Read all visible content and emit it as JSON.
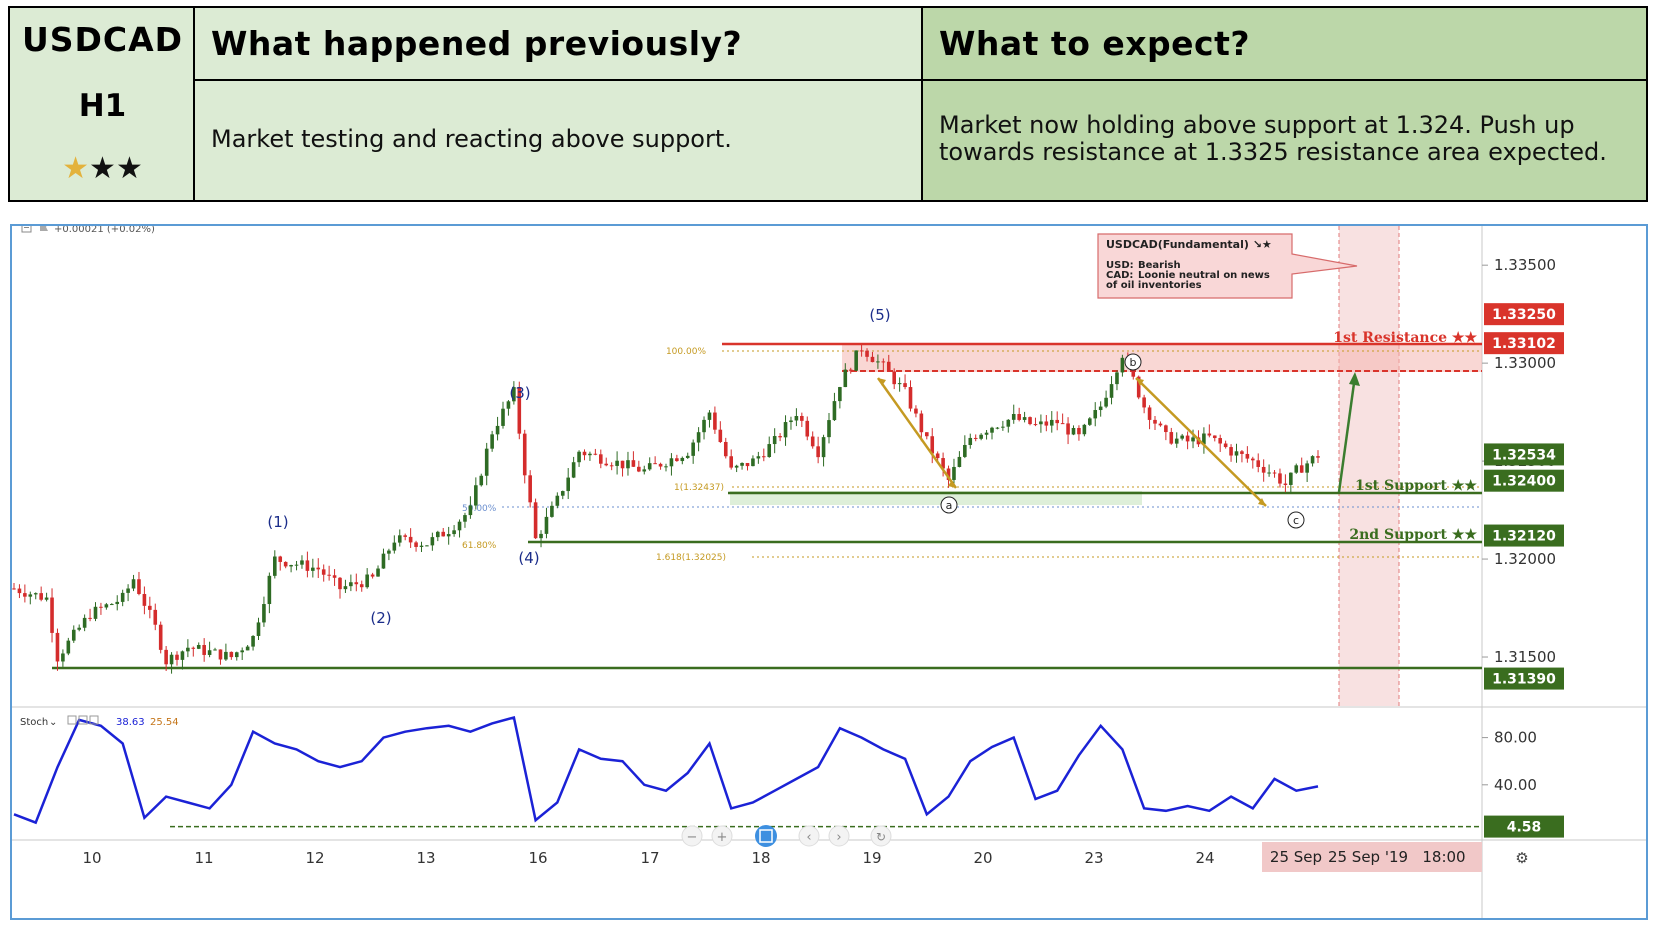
{
  "header": {
    "symbol": "USDCAD",
    "timeframe": "H1",
    "rating_stars": 3,
    "rating_highlighted": 1,
    "col_prev_title": "What happened previously?",
    "col_exp_title": "What to expect?",
    "prev_text": "Market testing and reacting above support.",
    "exp_line1": "Market now holding above support at 1.324. Push up",
    "exp_line2": "towards resistance at 1.3325 resistance area expected."
  },
  "chart": {
    "change_text": "+0.00021 (+0.02%)",
    "fundamental": {
      "title": "USDCAD(Fundamental) ↘★",
      "usd_key": "USD:",
      "usd_val": "Bearish",
      "cad_key": "CAD:",
      "cad_val": "Loonie neutral on news",
      "cad_val2": "of oil inventories"
    },
    "labels": {
      "resistance1": "1st Resistance ★★",
      "support1": "1st Support ★★",
      "support2": "2nd Support ★★",
      "fib100": "100.00%",
      "fib50": "50.00%",
      "fib618": "61.80%",
      "fib1": "1(1.32437)",
      "fib1618": "1.618(1.32025)"
    },
    "stoch_name": "Stoch",
    "stoch_k": "38.63",
    "stoch_d": "25.54",
    "time_label": "25 Sep",
    "time_label_full": "25 Sep '19",
    "time_label_clock": "18:00",
    "colors": {
      "up": "#2e6b24",
      "down": "#d42c2c",
      "support": "#3a6d1f",
      "resistance": "#d9342b",
      "fib": "#c59a22",
      "stoch": "#1b22d6",
      "wave": "#1b2d8a"
    }
  },
  "chart_data": {
    "type": "candlestick",
    "symbol": "USDCAD",
    "timeframe": "H1",
    "x_ticks": [
      "10",
      "11",
      "12",
      "13",
      "16",
      "17",
      "18",
      "19",
      "20",
      "23",
      "24",
      "25 Sep"
    ],
    "y_ticks": [
      "1.31500",
      "1.32000",
      "1.32500",
      "1.33000",
      "1.33500"
    ],
    "ylim": [
      1.3125,
      1.337
    ],
    "price_tags": [
      {
        "value": 1.3325,
        "label": "1.33250",
        "kind": "resistance"
      },
      {
        "value": 1.33102,
        "label": "1.33102",
        "kind": "resistance"
      },
      {
        "value": 1.32534,
        "label": "1.32534",
        "kind": "current"
      },
      {
        "value": 1.324,
        "label": "1.32400",
        "kind": "support"
      },
      {
        "value": 1.3212,
        "label": "1.32120",
        "kind": "support"
      },
      {
        "value": 1.3139,
        "label": "1.31390",
        "kind": "support"
      }
    ],
    "wave_labels": [
      {
        "label": "(1)",
        "x": 21.6,
        "price": 1.3221
      },
      {
        "label": "(2)",
        "x": 32.6,
        "price": 1.3172
      },
      {
        "label": "(3)",
        "x": 44.5,
        "price": 1.3292
      },
      {
        "label": "(4)",
        "x": 47.6,
        "price": 1.321
      },
      {
        "label": "(5)",
        "x": 78.5,
        "price": 1.3331
      },
      {
        "label": "a",
        "x": 85.6,
        "price": 1.3239
      },
      {
        "label": "b",
        "x": 102.0,
        "price": 1.3311
      },
      {
        "label": "c",
        "x": 117.0,
        "price": 1.3236
      }
    ],
    "price_path": [
      [
        0,
        1.3185
      ],
      [
        3,
        1.318
      ],
      [
        4,
        1.315
      ],
      [
        7,
        1.3172
      ],
      [
        10,
        1.318
      ],
      [
        11,
        1.319
      ],
      [
        13,
        1.3165
      ],
      [
        14,
        1.3148
      ],
      [
        16,
        1.3155
      ],
      [
        20,
        1.315
      ],
      [
        22,
        1.316
      ],
      [
        24,
        1.32
      ],
      [
        28,
        1.3195
      ],
      [
        30,
        1.3185
      ],
      [
        33,
        1.319
      ],
      [
        35,
        1.321
      ],
      [
        38,
        1.3208
      ],
      [
        40,
        1.3215
      ],
      [
        42,
        1.3225
      ],
      [
        44,
        1.3265
      ],
      [
        46,
        1.3285
      ],
      [
        47,
        1.3245
      ],
      [
        48,
        1.321
      ],
      [
        50,
        1.323
      ],
      [
        52,
        1.3255
      ],
      [
        55,
        1.325
      ],
      [
        58,
        1.3245
      ],
      [
        60,
        1.325
      ],
      [
        62,
        1.3255
      ],
      [
        64,
        1.3275
      ],
      [
        66,
        1.3245
      ],
      [
        68,
        1.325
      ],
      [
        70,
        1.326
      ],
      [
        72,
        1.3275
      ],
      [
        74,
        1.3255
      ],
      [
        76,
        1.329
      ],
      [
        78,
        1.3308
      ],
      [
        80,
        1.3298
      ],
      [
        82,
        1.3285
      ],
      [
        84,
        1.326
      ],
      [
        86,
        1.324
      ],
      [
        88,
        1.3262
      ],
      [
        90,
        1.3268
      ],
      [
        92,
        1.3272
      ],
      [
        94,
        1.3268
      ],
      [
        96,
        1.327
      ],
      [
        98,
        1.3262
      ],
      [
        100,
        1.3278
      ],
      [
        102,
        1.3305
      ],
      [
        104,
        1.3278
      ],
      [
        106,
        1.3262
      ],
      [
        108,
        1.326
      ],
      [
        110,
        1.3262
      ],
      [
        112,
        1.3255
      ],
      [
        114,
        1.325
      ],
      [
        116,
        1.3243
      ],
      [
        117,
        1.3238
      ],
      [
        118,
        1.3245
      ],
      [
        120,
        1.3253
      ]
    ],
    "stoch_k_path": [
      [
        0,
        15
      ],
      [
        2,
        8
      ],
      [
        4,
        55
      ],
      [
        6,
        95
      ],
      [
        8,
        90
      ],
      [
        10,
        75
      ],
      [
        12,
        12
      ],
      [
        14,
        30
      ],
      [
        16,
        25
      ],
      [
        18,
        20
      ],
      [
        20,
        40
      ],
      [
        22,
        85
      ],
      [
        24,
        75
      ],
      [
        26,
        70
      ],
      [
        28,
        60
      ],
      [
        30,
        55
      ],
      [
        32,
        60
      ],
      [
        34,
        80
      ],
      [
        36,
        85
      ],
      [
        38,
        88
      ],
      [
        40,
        90
      ],
      [
        42,
        85
      ],
      [
        44,
        92
      ],
      [
        46,
        97
      ],
      [
        48,
        10
      ],
      [
        50,
        25
      ],
      [
        52,
        70
      ],
      [
        54,
        62
      ],
      [
        56,
        60
      ],
      [
        58,
        40
      ],
      [
        60,
        35
      ],
      [
        62,
        50
      ],
      [
        64,
        75
      ],
      [
        66,
        20
      ],
      [
        68,
        25
      ],
      [
        70,
        35
      ],
      [
        72,
        45
      ],
      [
        74,
        55
      ],
      [
        76,
        88
      ],
      [
        78,
        80
      ],
      [
        80,
        70
      ],
      [
        82,
        62
      ],
      [
        84,
        15
      ],
      [
        86,
        30
      ],
      [
        88,
        60
      ],
      [
        90,
        72
      ],
      [
        92,
        80
      ],
      [
        94,
        28
      ],
      [
        96,
        35
      ],
      [
        98,
        65
      ],
      [
        100,
        90
      ],
      [
        102,
        70
      ],
      [
        104,
        20
      ],
      [
        106,
        18
      ],
      [
        108,
        22
      ],
      [
        110,
        18
      ],
      [
        112,
        30
      ],
      [
        114,
        20
      ],
      [
        116,
        45
      ],
      [
        118,
        35
      ],
      [
        120,
        38.63
      ]
    ],
    "stoch_oversold": 4.58,
    "stoch_yticks": [
      "40.00",
      "80.00"
    ]
  }
}
